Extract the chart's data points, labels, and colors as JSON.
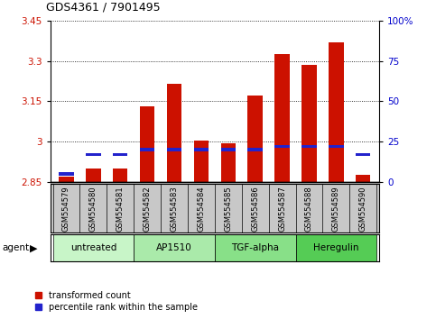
{
  "title": "GDS4361 / 7901495",
  "samples": [
    "GSM554579",
    "GSM554580",
    "GSM554581",
    "GSM554582",
    "GSM554583",
    "GSM554584",
    "GSM554585",
    "GSM554586",
    "GSM554587",
    "GSM554588",
    "GSM554589",
    "GSM554590"
  ],
  "red_values": [
    2.87,
    2.9,
    2.9,
    3.13,
    3.215,
    3.002,
    2.993,
    3.17,
    3.325,
    3.285,
    3.37,
    2.875
  ],
  "blue_pct": [
    5,
    17,
    17,
    20,
    20,
    20,
    20,
    20,
    22,
    22,
    22,
    17
  ],
  "ymin": 2.85,
  "ymax": 3.45,
  "yticks": [
    2.85,
    3.0,
    3.15,
    3.3,
    3.45
  ],
  "ytick_labels": [
    "2.85",
    "3",
    "3.15",
    "3.3",
    "3.45"
  ],
  "right_yticks_pct": [
    0,
    25,
    50,
    75,
    100
  ],
  "right_ytick_labels": [
    "0",
    "25",
    "50",
    "75",
    "100%"
  ],
  "groups": [
    {
      "label": "untreated",
      "start": 0,
      "end": 3
    },
    {
      "label": "AP1510",
      "start": 3,
      "end": 6
    },
    {
      "label": "TGF-alpha",
      "start": 6,
      "end": 9
    },
    {
      "label": "Heregulin",
      "start": 9,
      "end": 12
    }
  ],
  "group_colors": [
    "#b2f0b2",
    "#b2f0b2",
    "#66dd66",
    "#44cc44"
  ],
  "agent_label": "agent",
  "legend_red": "transformed count",
  "legend_blue": "percentile rank within the sample",
  "bar_color_red": "#cc1100",
  "bar_color_blue": "#2222cc",
  "tick_color_left": "#cc1100",
  "tick_color_right": "#0000cc",
  "bar_width": 0.55,
  "blue_bar_height": 0.012,
  "sample_area_color": "#c8c8c8",
  "group_area_colors": [
    "#b8f0b8",
    "#9ee89e",
    "#7adc7a",
    "#55cc55"
  ]
}
